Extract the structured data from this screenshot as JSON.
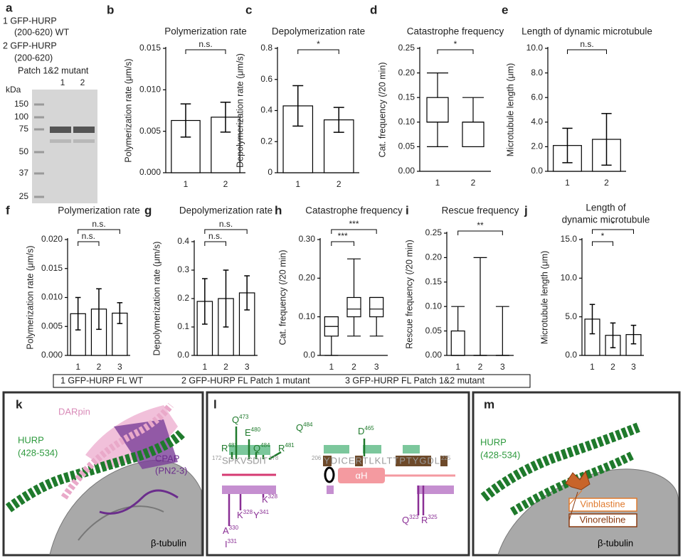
{
  "panel_labels": [
    "a",
    "b",
    "c",
    "d",
    "e",
    "f",
    "g",
    "h",
    "i",
    "j",
    "k",
    "l",
    "m"
  ],
  "gel": {
    "legend": [
      "1 GFP-HURP",
      "(200-620) WT",
      "2 GFP-HURP",
      "(200-620)",
      "Patch 1&2 mutant"
    ],
    "lanes": [
      "1",
      "2"
    ],
    "unit": "kDa",
    "markers": [
      150,
      100,
      75,
      50,
      37,
      25
    ]
  },
  "chart_data": [
    {
      "type": "bar",
      "title": "Polymerization rate",
      "y_label": "Polymerization rate (μm/s)",
      "categories": [
        "1",
        "2"
      ],
      "values": [
        0.0063,
        0.0067
      ],
      "errors": [
        0.002,
        0.0018
      ],
      "ylim": [
        0,
        0.015
      ],
      "yticks": [
        {
          "value": 0,
          "label": "0.000"
        },
        0.005,
        {
          "value": 0.01,
          "label": "0.010"
        },
        0.015
      ],
      "significance": [
        {
          "between": [
            "1",
            "2"
          ],
          "label": "n.s."
        }
      ]
    },
    {
      "type": "bar",
      "title": "Depolymerization rate",
      "y_label": "Depolymerization rate (μm/s)",
      "categories": [
        "1",
        "2"
      ],
      "values": [
        0.43,
        0.34
      ],
      "errors": [
        0.13,
        0.08
      ],
      "ylim": [
        0,
        0.8
      ],
      "yticks": [
        0,
        0.2,
        0.4,
        0.6,
        0.8
      ],
      "significance": [
        {
          "between": [
            "1",
            "2"
          ],
          "label": "*"
        }
      ]
    },
    {
      "type": "box",
      "title": "Catastrophe frequency",
      "y_label": "Cat. frequency (/20 min)",
      "categories": [
        "1",
        "2"
      ],
      "boxes": [
        {
          "min": 0.05,
          "q1": 0.1,
          "median": 0.1,
          "q3": 0.15,
          "max": 0.2
        },
        {
          "min": 0.05,
          "q1": 0.05,
          "median": 0.1,
          "q3": 0.1,
          "max": 0.15
        }
      ],
      "ylim": [
        0,
        0.25
      ],
      "yticks": [
        {
          "value": 0,
          "label": "0.00"
        },
        0.05,
        {
          "value": 0.1,
          "label": "0.10"
        },
        0.15,
        {
          "value": 0.2,
          "label": "0.20"
        },
        0.25
      ],
      "significance": [
        {
          "between": [
            "1",
            "2"
          ],
          "label": "*"
        }
      ]
    },
    {
      "type": "bar",
      "title": "Length of dynamic microtubule",
      "y_label": "Microtubule length (μm)",
      "categories": [
        "1",
        "2"
      ],
      "values": [
        2.1,
        2.6
      ],
      "errors": [
        1.4,
        2.1
      ],
      "ylim": [
        0,
        10
      ],
      "yticks": [
        {
          "value": 0,
          "label": "0.0"
        },
        {
          "value": 2,
          "label": "2.0"
        },
        {
          "value": 4,
          "label": "4.0"
        },
        {
          "value": 6,
          "label": "6.0"
        },
        {
          "value": 8,
          "label": "8.0"
        },
        {
          "value": 10,
          "label": "10.0"
        }
      ],
      "significance": [
        {
          "between": [
            "1",
            "2"
          ],
          "label": "n.s."
        }
      ]
    },
    {
      "type": "bar",
      "title": "Polymerization rate",
      "y_label": "Polymerization rate (μm/s)",
      "categories": [
        "1",
        "2",
        "3"
      ],
      "values": [
        0.0072,
        0.008,
        0.0073
      ],
      "errors": [
        0.0028,
        0.0035,
        0.0018
      ],
      "ylim": [
        0,
        0.02
      ],
      "yticks": [
        {
          "value": 0,
          "label": "0.000"
        },
        0.005,
        {
          "value": 0.01,
          "label": "0.010"
        },
        0.015,
        {
          "value": 0.02,
          "label": "0.020"
        }
      ],
      "significance": [
        {
          "between": [
            "1",
            "2"
          ],
          "label": "n.s."
        },
        {
          "between": [
            "1",
            "3"
          ],
          "label": "n.s."
        }
      ]
    },
    {
      "type": "bar",
      "title": "Depolymerization rate",
      "y_label": "Depolymerization rate (μm/s)",
      "categories": [
        "1",
        "2",
        "3"
      ],
      "values": [
        0.19,
        0.2,
        0.22
      ],
      "errors": [
        0.08,
        0.1,
        0.06
      ],
      "ylim": [
        0,
        0.4
      ],
      "yticks": [
        {
          "value": 0,
          "label": "0.0"
        },
        0.1,
        0.2,
        0.3,
        0.4
      ],
      "significance": [
        {
          "between": [
            "1",
            "2"
          ],
          "label": "n.s."
        },
        {
          "between": [
            "1",
            "3"
          ],
          "label": "n.s."
        }
      ]
    },
    {
      "type": "box",
      "title": "Catastrophe frequency",
      "y_label": "Cat. frequency (/20 min)",
      "categories": [
        "1",
        "2",
        "3"
      ],
      "boxes": [
        {
          "min": 0,
          "q1": 0.05,
          "median": 0.075,
          "q3": 0.1,
          "max": 0.1
        },
        {
          "min": 0.05,
          "q1": 0.1,
          "median": 0.12,
          "q3": 0.15,
          "max": 0.25
        },
        {
          "min": 0.05,
          "q1": 0.1,
          "median": 0.12,
          "q3": 0.15,
          "max": 0.15
        }
      ],
      "ylim": [
        0,
        0.3
      ],
      "yticks": [
        {
          "value": 0,
          "label": "0.0"
        },
        {
          "value": 0.1,
          "label": "0.10"
        },
        {
          "value": 0.2,
          "label": "0.20"
        },
        {
          "value": 0.3,
          "label": "0.30"
        }
      ],
      "significance": [
        {
          "between": [
            "1",
            "2"
          ],
          "label": "***"
        },
        {
          "between": [
            "1",
            "3"
          ],
          "label": "***"
        }
      ]
    },
    {
      "type": "box",
      "title": "Rescue frequency",
      "y_label": "Rescue frequency (/20 min)",
      "categories": [
        "1",
        "2",
        "3"
      ],
      "boxes": [
        {
          "min": 0,
          "q1": 0,
          "median": 0,
          "q3": 0.05,
          "max": 0.1
        },
        {
          "min": 0,
          "q1": 0,
          "median": 0,
          "q3": 0,
          "max": 0.2
        },
        {
          "min": 0,
          "q1": 0,
          "median": 0,
          "q3": 0,
          "max": 0.1
        }
      ],
      "ylim": [
        0,
        0.25
      ],
      "yticks": [
        {
          "value": 0,
          "label": "0.00"
        },
        0.05,
        {
          "value": 0.1,
          "label": "0.10"
        },
        0.15,
        {
          "value": 0.2,
          "label": "0.20"
        },
        0.25
      ],
      "significance": [
        {
          "between": [
            "1",
            "3"
          ],
          "label": "**"
        }
      ]
    },
    {
      "type": "bar",
      "title": [
        "Length of",
        "dynamic microtubule"
      ],
      "y_label": "Microtubule length (μm)",
      "categories": [
        "1",
        "2",
        "3"
      ],
      "values": [
        4.7,
        2.6,
        2.7
      ],
      "errors": [
        1.9,
        1.6,
        1.2
      ],
      "ylim": [
        0,
        15
      ],
      "yticks": [
        {
          "value": 0,
          "label": "0.0"
        },
        {
          "value": 5,
          "label": "5.0"
        },
        {
          "value": 10,
          "label": "10.0"
        },
        {
          "value": 15,
          "label": "15.0"
        }
      ],
      "significance": [
        {
          "between": [
            "1",
            "2"
          ],
          "label": "*"
        },
        {
          "between": [
            "1",
            "3"
          ],
          "label": "*"
        }
      ]
    }
  ],
  "legend": [
    "1  GFP-HURP FL WT",
    "2  GFP-HURP FL Patch 1 mutant",
    "3  GFP-HURP FL Patch 1&2 mutant"
  ],
  "structure_k": [
    "DARpin",
    "HURP",
    "(428-534)",
    "CPAP",
    "(PN2-3)",
    "β-tubulin"
  ],
  "diagram_l": {
    "green_labels": [
      {
        "text": "Q",
        "sup": "473"
      },
      {
        "text": "E",
        "sup": "480"
      },
      {
        "text": "Q",
        "sup": "484"
      },
      {
        "text": "R",
        "sup": "481"
      },
      {
        "text": "Q",
        "sup": "484"
      },
      {
        "text": "R",
        "sup": "481"
      },
      {
        "text": "D",
        "sup": "465"
      }
    ],
    "sequences": [
      {
        "start": "172",
        "seq": "SPKVSDIT",
        "end": "178"
      },
      {
        "start": "206",
        "seq": "YDICERTLKLTTPTYGDL",
        "end": "225"
      }
    ],
    "helix": "αH",
    "purple_labels": [
      {
        "text": "K",
        "sup": "328"
      },
      {
        "text": "K",
        "sup": "328"
      },
      {
        "text": "Y",
        "sup": "341"
      },
      {
        "text": "A",
        "sup": "330"
      },
      {
        "text": "I",
        "sup": "331"
      },
      {
        "text": "Q",
        "sup": "323"
      },
      {
        "text": "R",
        "sup": "325"
      }
    ]
  },
  "structure_m": [
    "HURP",
    "(428-534)",
    "Vinblastine",
    "Vinorelbine",
    "β-tubulin"
  ]
}
